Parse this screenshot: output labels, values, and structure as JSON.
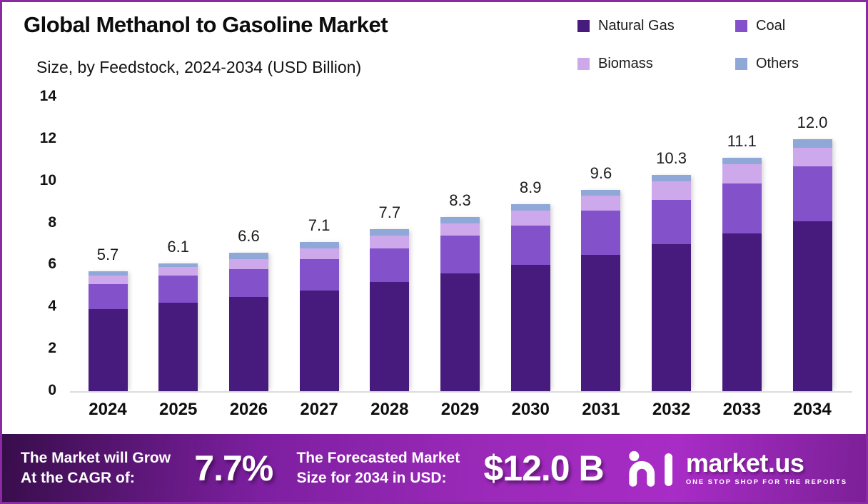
{
  "header": {
    "title": "Global Methanol to Gasoline Market",
    "subtitle": "Size, by Feedstock, 2024-2034 (USD Billion)"
  },
  "chart_data": {
    "type": "bar",
    "stacked": true,
    "title": "Global Methanol to Gasoline Market Size, by Feedstock, 2024-2034 (USD Billion)",
    "xlabel": "",
    "ylabel": "USD Billion",
    "categories": [
      "2024",
      "2025",
      "2026",
      "2027",
      "2028",
      "2029",
      "2030",
      "2031",
      "2032",
      "2033",
      "2034"
    ],
    "series": [
      {
        "name": "Natural Gas",
        "color": "#471A7E",
        "values": [
          3.9,
          4.2,
          4.5,
          4.8,
          5.2,
          5.6,
          6.0,
          6.5,
          7.0,
          7.5,
          8.1
        ]
      },
      {
        "name": "Coal",
        "color": "#8352CB",
        "values": [
          1.2,
          1.3,
          1.3,
          1.5,
          1.6,
          1.8,
          1.9,
          2.1,
          2.1,
          2.4,
          2.6
        ]
      },
      {
        "name": "Biomass",
        "color": "#CDA9EC",
        "values": [
          0.4,
          0.4,
          0.5,
          0.5,
          0.6,
          0.6,
          0.7,
          0.7,
          0.9,
          0.9,
          0.9
        ]
      },
      {
        "name": "Others",
        "color": "#8FA8D8",
        "values": [
          0.2,
          0.2,
          0.3,
          0.3,
          0.3,
          0.3,
          0.3,
          0.3,
          0.3,
          0.3,
          0.4
        ]
      }
    ],
    "totals": [
      5.7,
      6.1,
      6.6,
      7.1,
      7.7,
      8.3,
      8.9,
      9.6,
      10.3,
      11.1,
      12.0
    ],
    "ylim": [
      0,
      14
    ],
    "ytick_step": 2,
    "grid": false,
    "legend_position": "top-right"
  },
  "banner": {
    "cagr_label_line1": "The Market will Grow",
    "cagr_label_line2": "At the CAGR of:",
    "cagr_value": "7.7%",
    "forecast_label_line1": "The Forecasted Market",
    "forecast_label_line2": "Size for 2034 in USD:",
    "forecast_value": "$12.0 B",
    "logo_text": "market.us",
    "logo_tagline": "ONE STOP SHOP FOR THE REPORTS"
  },
  "colors": {
    "border": "#8A2BA5",
    "baseline": "#DCDCDC",
    "banner_gradient_start": "#380D4B",
    "banner_gradient_mid": "#A82CC6",
    "banner_gradient_end": "#7C2097"
  }
}
